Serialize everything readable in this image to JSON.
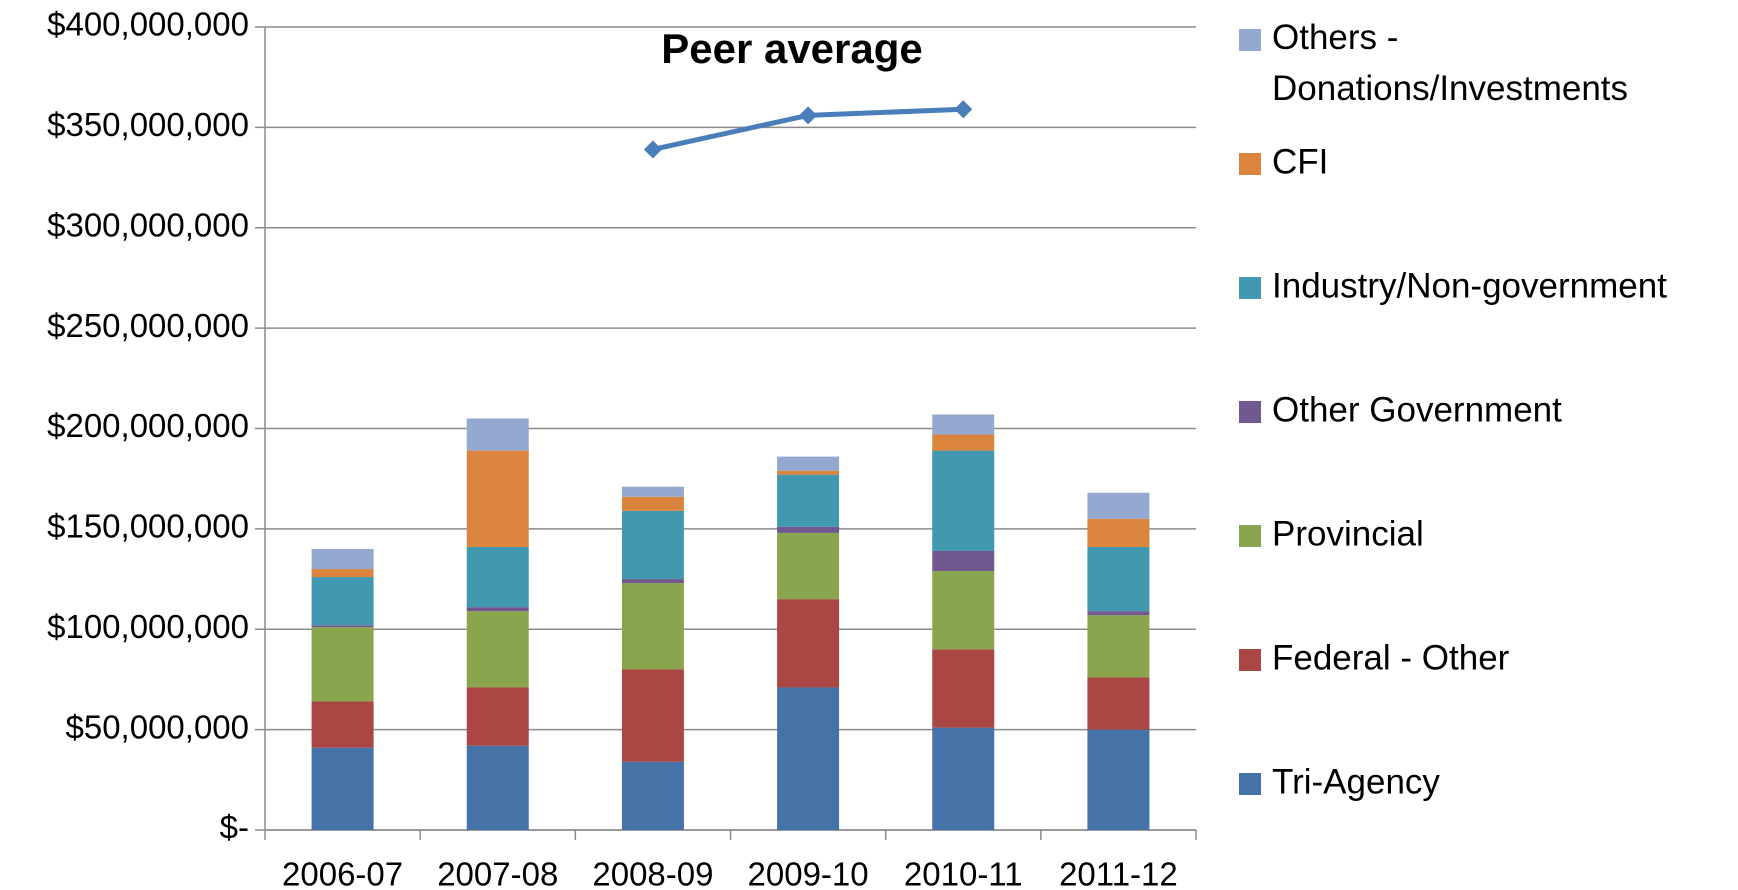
{
  "chart_data": {
    "type": "stacked_bar_line",
    "title": "Peer average",
    "categories": [
      "2006-07",
      "2007-08",
      "2008-09",
      "2009-10",
      "2010-11",
      "2011-12"
    ],
    "series": [
      {
        "name": "Tri-Agency",
        "color": "#4572a7",
        "values": [
          41000000,
          42000000,
          34000000,
          71000000,
          51000000,
          50000000
        ]
      },
      {
        "name": "Federal - Other",
        "color": "#aa4643",
        "values": [
          23000000,
          29000000,
          46000000,
          44000000,
          39000000,
          26000000
        ]
      },
      {
        "name": "Provincial",
        "color": "#89a54e",
        "values": [
          37000000,
          38000000,
          43000000,
          33000000,
          39000000,
          31000000
        ]
      },
      {
        "name": "Other Government",
        "color": "#71588f",
        "values": [
          1000000,
          2000000,
          2000000,
          3000000,
          10000000,
          2000000
        ]
      },
      {
        "name": "Industry/Non-government",
        "color": "#4198af",
        "values": [
          24000000,
          30000000,
          34000000,
          26000000,
          50000000,
          32000000
        ]
      },
      {
        "name": "CFI",
        "color": "#db843d",
        "values": [
          4000000,
          48000000,
          7000000,
          2000000,
          8000000,
          14000000
        ]
      },
      {
        "name": "Others - Donations/Investments",
        "color": "#93a9cf",
        "values": [
          10000000,
          16000000,
          5000000,
          7000000,
          10000000,
          13000000
        ]
      }
    ],
    "line": {
      "color": "#4a7ebb",
      "values": [
        null,
        null,
        339000000,
        356000000,
        359000000,
        null
      ]
    },
    "ylim": [
      0,
      400000000
    ],
    "yticks": [
      {
        "value": 0,
        "label": "$-"
      },
      {
        "value": 50000000,
        "label": "$50,000,000"
      },
      {
        "value": 100000000,
        "label": "$100,000,000"
      },
      {
        "value": 150000000,
        "label": "$150,000,000"
      },
      {
        "value": 200000000,
        "label": "$200,000,000"
      },
      {
        "value": 250000000,
        "label": "$250,000,000"
      },
      {
        "value": 300000000,
        "label": "$300,000,000"
      },
      {
        "value": 350000000,
        "label": "$350,000,000"
      },
      {
        "value": 400000000,
        "label": "$400,000,000"
      }
    ],
    "grid": true,
    "legend": "right"
  }
}
